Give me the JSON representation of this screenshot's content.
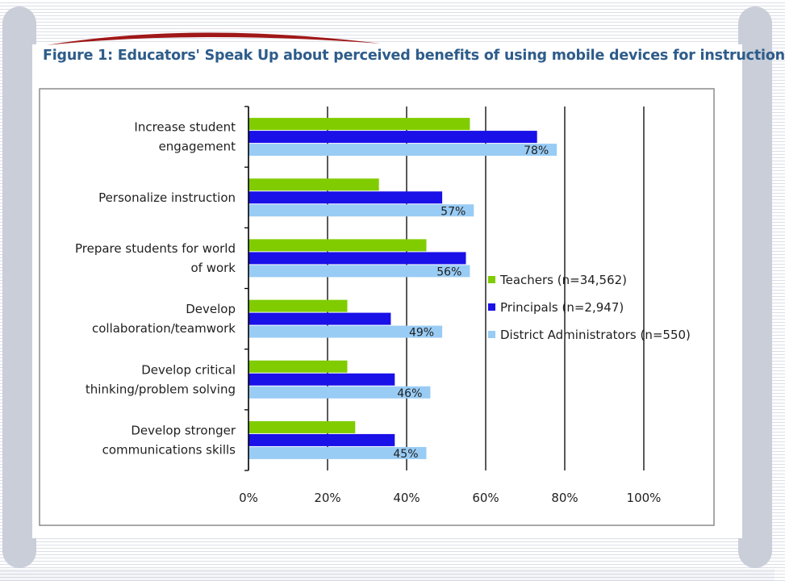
{
  "figure_title": "Figure 1: Educators' Speak Up about perceived benefits of using mobile devices for instruction",
  "colors": {
    "teachers": "#80cc00",
    "principals": "#1a10e8",
    "district_administrators": "#99ccf5",
    "title": "#2e5c8a",
    "swoosh": "#a01818",
    "gridline": "#000000"
  },
  "chart_data": {
    "type": "bar",
    "orientation": "horizontal",
    "title": "",
    "xlabel": "",
    "ylabel": "",
    "xlim": [
      0,
      100
    ],
    "x_ticks": [
      "0%",
      "20%",
      "40%",
      "60%",
      "80%",
      "100%"
    ],
    "grid": true,
    "legend_position": "right",
    "categories": [
      [
        "Increase student",
        "engagement"
      ],
      [
        "Personalize instruction"
      ],
      [
        "Prepare students for world",
        "of work"
      ],
      [
        "Develop",
        "collaboration/teamwork"
      ],
      [
        "Develop critical",
        "thinking/problem solving"
      ],
      [
        "Develop stronger",
        "communications skills"
      ]
    ],
    "series": [
      {
        "name": "Teachers (n=34,562)",
        "color": "#80cc00",
        "values": [
          56,
          33,
          45,
          25,
          25,
          27
        ],
        "labels": [
          "",
          "",
          "",
          "",
          "",
          ""
        ]
      },
      {
        "name": "Principals (n=2,947)",
        "color": "#1a10e8",
        "values": [
          73,
          49,
          55,
          36,
          37,
          37
        ],
        "labels": [
          "",
          "",
          "",
          "",
          "",
          ""
        ]
      },
      {
        "name": "District Administrators (n=550)",
        "color": "#99ccf5",
        "values": [
          78,
          57,
          56,
          49,
          46,
          45
        ],
        "labels": [
          "78%",
          "57%",
          "56%",
          "49%",
          "46%",
          "45%"
        ]
      }
    ]
  }
}
